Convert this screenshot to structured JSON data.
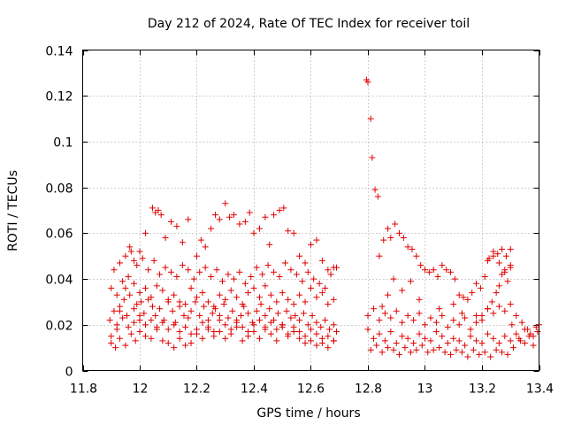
{
  "chart_data": {
    "type": "scatter",
    "title": "Day 212 of 2024, Rate Of TEC Index for receiver toil",
    "xlabel": "GPS time / hours",
    "ylabel": "ROTI / TECUs",
    "xlim": [
      11.8,
      13.4
    ],
    "ylim": [
      0,
      0.14
    ],
    "xticks": [
      11.8,
      12,
      12.2,
      12.4,
      12.6,
      12.8,
      13,
      13.2,
      13.4
    ],
    "xtick_labels": [
      "11.8",
      "12",
      "12.2",
      "12.4",
      "12.6",
      "12.8",
      "13",
      "13.2",
      "13.4"
    ],
    "yticks": [
      0,
      0.02,
      0.04,
      0.06,
      0.08,
      0.1,
      0.12,
      0.14
    ],
    "ytick_labels": [
      "0",
      "0.02",
      "0.04",
      "0.06",
      "0.08",
      "0.1",
      "0.12",
      "0.14"
    ],
    "grid": true,
    "marker": "+",
    "color": "#e00000",
    "series": [
      {
        "name": "ROTI",
        "x": [
          11.895,
          11.9,
          11.91,
          11.92,
          11.93,
          11.945,
          11.955,
          11.965,
          11.98,
          11.99,
          12.0,
          12.005,
          12.015,
          12.03,
          12.045,
          12.055,
          12.07,
          12.085,
          12.1,
          12.115,
          12.125,
          12.14,
          12.155,
          12.17,
          12.18,
          12.195,
          12.21,
          12.225,
          12.24,
          12.255,
          12.265,
          12.28,
          12.295,
          12.31,
          12.325,
          12.34,
          12.355,
          12.365,
          12.38,
          12.395,
          12.41,
          12.425,
          12.44,
          12.455,
          12.47,
          12.485,
          12.5,
          12.515,
          12.53,
          12.545,
          12.56,
          12.575,
          12.59,
          12.605,
          12.62,
          12.635,
          12.65,
          12.665,
          12.68,
          12.69,
          11.9,
          11.915,
          11.93,
          11.95,
          11.97,
          11.985,
          12.0,
          12.02,
          12.04,
          12.06,
          12.08,
          12.1,
          12.12,
          12.14,
          12.16,
          12.18,
          12.2,
          12.22,
          12.24,
          12.26,
          12.28,
          12.3,
          12.32,
          12.34,
          12.36,
          12.38,
          12.4,
          12.42,
          12.44,
          12.46,
          12.48,
          12.5,
          12.52,
          12.54,
          12.56,
          12.58,
          12.6,
          12.62,
          12.64,
          12.66,
          12.68,
          11.9,
          11.92,
          11.94,
          11.96,
          11.98,
          12.0,
          12.02,
          12.04,
          12.06,
          12.08,
          12.1,
          12.12,
          12.14,
          12.16,
          12.18,
          12.2,
          12.22,
          12.24,
          12.26,
          12.28,
          12.3,
          12.32,
          12.34,
          12.36,
          12.38,
          12.4,
          12.42,
          12.44,
          12.46,
          12.48,
          12.5,
          12.52,
          12.54,
          12.56,
          12.58,
          12.6,
          12.62,
          12.64,
          12.66,
          12.68,
          11.91,
          11.93,
          11.95,
          11.97,
          11.99,
          12.01,
          12.03,
          12.05,
          12.07,
          12.09,
          12.11,
          12.13,
          12.15,
          12.17,
          12.19,
          12.21,
          12.23,
          12.25,
          12.27,
          12.29,
          12.31,
          12.33,
          12.35,
          12.37,
          12.39,
          12.41,
          12.43,
          12.45,
          12.47,
          12.49,
          12.51,
          12.53,
          12.55,
          12.57,
          12.59,
          12.61,
          12.63,
          12.65,
          12.67,
          12.69,
          11.92,
          11.94,
          11.96,
          11.98,
          12.0,
          12.02,
          12.04,
          12.06,
          12.08,
          12.1,
          12.12,
          12.14,
          12.16,
          12.18,
          12.2,
          12.22,
          12.24,
          12.26,
          12.28,
          12.3,
          12.32,
          12.34,
          12.36,
          12.38,
          12.4,
          12.42,
          12.44,
          12.46,
          12.48,
          12.5,
          12.52,
          12.54,
          12.56,
          12.58,
          12.6,
          12.62,
          12.64,
          12.66,
          12.68,
          11.93,
          11.95,
          11.965,
          11.98,
          12.0,
          12.02,
          12.045,
          12.055,
          12.065,
          12.075,
          12.09,
          12.11,
          12.13,
          12.15,
          12.17,
          12.2,
          12.215,
          12.23,
          12.25,
          12.265,
          12.28,
          12.3,
          12.315,
          12.33,
          12.35,
          12.37,
          12.385,
          12.4,
          12.42,
          12.44,
          12.455,
          12.47,
          12.49,
          12.505,
          12.52,
          12.54,
          12.56,
          12.58,
          12.6,
          12.62,
          12.64,
          12.66,
          12.68,
          12.795,
          12.8,
          12.81,
          12.815,
          12.825,
          12.835,
          12.84,
          12.855,
          12.87,
          12.88,
          12.895,
          12.91,
          12.925,
          12.94,
          12.955,
          12.97,
          12.985,
          13.0,
          13.015,
          13.03,
          13.045,
          13.06,
          13.075,
          13.09,
          13.105,
          13.12,
          13.135,
          13.15,
          13.165,
          13.18,
          13.195,
          13.21,
          13.225,
          13.24,
          13.255,
          13.27,
          13.285,
          13.3,
          12.8,
          12.82,
          12.84,
          12.86,
          12.88,
          12.9,
          12.92,
          12.94,
          12.96,
          12.98,
          13.0,
          13.02,
          13.04,
          13.06,
          13.08,
          13.1,
          13.12,
          13.14,
          13.16,
          13.18,
          13.2,
          13.22,
          13.24,
          13.26,
          13.28,
          13.3,
          12.81,
          12.83,
          12.85,
          12.87,
          12.89,
          12.91,
          12.93,
          12.95,
          12.97,
          12.99,
          13.01,
          13.03,
          13.05,
          13.07,
          13.09,
          13.11,
          13.13,
          13.15,
          13.17,
          13.19,
          13.21,
          13.23,
          13.25,
          13.27,
          13.29,
          12.8,
          12.82,
          12.84,
          12.86,
          12.88,
          12.9,
          12.92,
          12.94,
          12.96,
          12.98,
          13.0,
          13.02,
          13.04,
          13.06,
          13.08,
          13.1,
          13.12,
          13.14,
          13.16,
          13.18,
          13.2,
          13.22,
          13.24,
          13.26,
          13.28,
          13.3,
          12.85,
          12.87,
          12.89,
          12.92,
          12.95,
          12.98,
          13.05,
          13.1,
          13.13,
          13.18,
          13.2,
          13.22,
          13.235,
          13.25,
          13.26,
          13.27,
          13.28,
          13.29,
          13.3,
          13.22,
          13.24,
          13.26,
          13.28,
          13.3,
          13.305,
          13.32,
          13.335,
          13.35,
          13.365,
          13.38,
          13.395,
          13.31,
          13.33,
          13.35,
          13.37,
          13.39,
          13.32,
          13.34,
          13.36,
          13.38,
          13.4
        ],
        "y": [
          0.022,
          0.015,
          0.026,
          0.018,
          0.028,
          0.031,
          0.024,
          0.033,
          0.027,
          0.029,
          0.022,
          0.03,
          0.025,
          0.031,
          0.028,
          0.024,
          0.027,
          0.022,
          0.03,
          0.026,
          0.021,
          0.028,
          0.024,
          0.023,
          0.026,
          0.03,
          0.024,
          0.028,
          0.022,
          0.025,
          0.027,
          0.024,
          0.029,
          0.023,
          0.026,
          0.022,
          0.024,
          0.028,
          0.025,
          0.021,
          0.026,
          0.029,
          0.024,
          0.027,
          0.022,
          0.025,
          0.02,
          0.026,
          0.023,
          0.024,
          0.022,
          0.025,
          0.02,
          0.024,
          0.021,
          0.019,
          0.022,
          0.018,
          0.02,
          0.017,
          0.012,
          0.01,
          0.014,
          0.011,
          0.016,
          0.013,
          0.017,
          0.015,
          0.014,
          0.018,
          0.013,
          0.012,
          0.01,
          0.014,
          0.011,
          0.012,
          0.016,
          0.014,
          0.018,
          0.015,
          0.017,
          0.014,
          0.016,
          0.019,
          0.013,
          0.015,
          0.017,
          0.014,
          0.018,
          0.016,
          0.013,
          0.019,
          0.015,
          0.017,
          0.014,
          0.012,
          0.013,
          0.011,
          0.012,
          0.01,
          0.013,
          0.036,
          0.033,
          0.039,
          0.041,
          0.038,
          0.034,
          0.036,
          0.032,
          0.037,
          0.035,
          0.031,
          0.033,
          0.03,
          0.029,
          0.036,
          0.032,
          0.034,
          0.03,
          0.028,
          0.033,
          0.031,
          0.035,
          0.032,
          0.029,
          0.034,
          0.036,
          0.032,
          0.037,
          0.033,
          0.03,
          0.034,
          0.031,
          0.029,
          0.033,
          0.03,
          0.036,
          0.032,
          0.034,
          0.029,
          0.031,
          0.044,
          0.047,
          0.05,
          0.052,
          0.046,
          0.049,
          0.044,
          0.048,
          0.042,
          0.045,
          0.043,
          0.041,
          0.046,
          0.044,
          0.04,
          0.043,
          0.045,
          0.041,
          0.044,
          0.039,
          0.042,
          0.04,
          0.043,
          0.038,
          0.041,
          0.045,
          0.042,
          0.046,
          0.043,
          0.041,
          0.047,
          0.044,
          0.042,
          0.039,
          0.043,
          0.04,
          0.038,
          0.036,
          0.042,
          0.045,
          0.02,
          0.023,
          0.019,
          0.021,
          0.024,
          0.02,
          0.022,
          0.019,
          0.021,
          0.018,
          0.02,
          0.017,
          0.019,
          0.016,
          0.018,
          0.021,
          0.019,
          0.017,
          0.022,
          0.02,
          0.018,
          0.021,
          0.019,
          0.017,
          0.02,
          0.022,
          0.019,
          0.021,
          0.018,
          0.02,
          0.016,
          0.019,
          0.017,
          0.015,
          0.018,
          0.016,
          0.014,
          0.015,
          0.013,
          0.026,
          0.036,
          0.054,
          0.048,
          0.052,
          0.06,
          0.071,
          0.069,
          0.07,
          0.068,
          0.058,
          0.065,
          0.063,
          0.056,
          0.066,
          0.05,
          0.057,
          0.054,
          0.062,
          0.068,
          0.066,
          0.073,
          0.067,
          0.068,
          0.064,
          0.065,
          0.069,
          0.06,
          0.062,
          0.067,
          0.055,
          0.068,
          0.07,
          0.071,
          0.061,
          0.06,
          0.05,
          0.047,
          0.055,
          0.057,
          0.048,
          0.044,
          0.045,
          0.127,
          0.126,
          0.11,
          0.093,
          0.079,
          0.076,
          0.05,
          0.057,
          0.062,
          0.058,
          0.064,
          0.06,
          0.058,
          0.054,
          0.053,
          0.05,
          0.046,
          0.044,
          0.043,
          0.044,
          0.041,
          0.046,
          0.044,
          0.043,
          0.04,
          0.033,
          0.032,
          0.031,
          0.034,
          0.038,
          0.036,
          0.041,
          0.049,
          0.052,
          0.051,
          0.053,
          0.05,
          0.053,
          0.018,
          0.014,
          0.016,
          0.013,
          0.017,
          0.012,
          0.015,
          0.014,
          0.012,
          0.016,
          0.014,
          0.013,
          0.017,
          0.015,
          0.012,
          0.014,
          0.013,
          0.011,
          0.015,
          0.013,
          0.012,
          0.016,
          0.014,
          0.012,
          0.015,
          0.013,
          0.009,
          0.011,
          0.008,
          0.01,
          0.009,
          0.007,
          0.01,
          0.008,
          0.009,
          0.011,
          0.008,
          0.009,
          0.01,
          0.008,
          0.007,
          0.009,
          0.008,
          0.006,
          0.009,
          0.007,
          0.008,
          0.006,
          0.009,
          0.008,
          0.007,
          0.024,
          0.027,
          0.022,
          0.025,
          0.023,
          0.026,
          0.021,
          0.024,
          0.022,
          0.025,
          0.02,
          0.023,
          0.021,
          0.024,
          0.019,
          0.022,
          0.02,
          0.023,
          0.018,
          0.021,
          0.024,
          0.027,
          0.025,
          0.028,
          0.026,
          0.029,
          0.028,
          0.033,
          0.04,
          0.035,
          0.039,
          0.031,
          0.027,
          0.029,
          0.025,
          0.024,
          0.022,
          0.027,
          0.03,
          0.034,
          0.037,
          0.042,
          0.044,
          0.039,
          0.045,
          0.048,
          0.05,
          0.047,
          0.043,
          0.046,
          0.02,
          0.016,
          0.013,
          0.018,
          0.015,
          0.011,
          0.017,
          0.01,
          0.014,
          0.012,
          0.016,
          0.019,
          0.024,
          0.021,
          0.018,
          0.015,
          0.02
        ]
      }
    ]
  }
}
